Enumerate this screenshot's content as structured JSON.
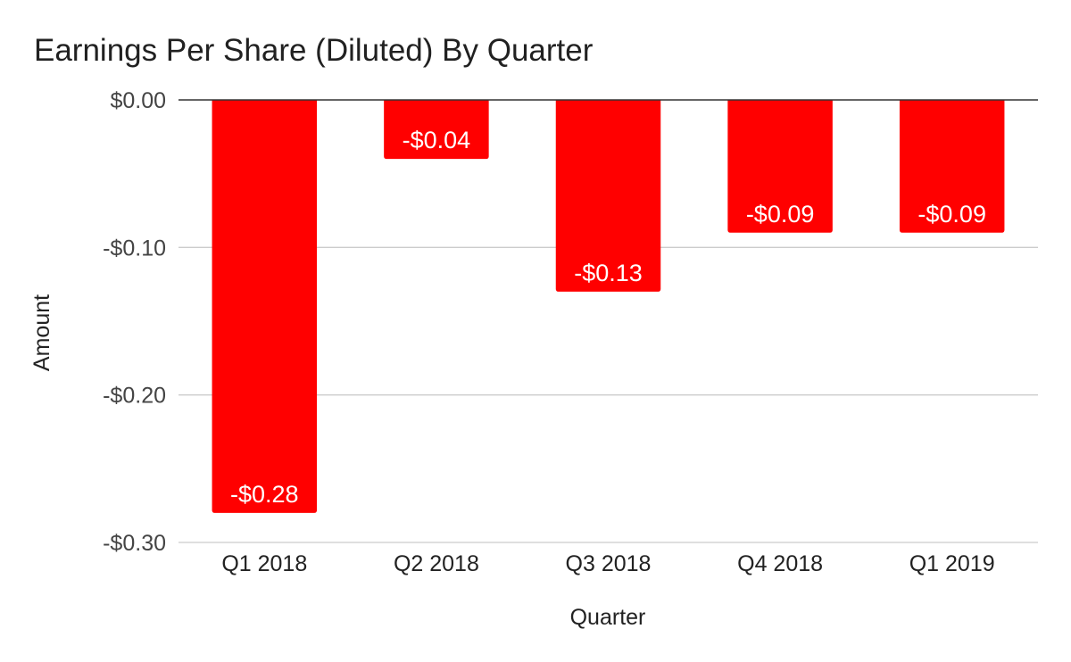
{
  "chart_data": {
    "type": "bar",
    "title": "Earnings Per Share (Diluted) By Quarter",
    "xlabel": "Quarter",
    "ylabel": "Amount",
    "categories": [
      "Q1 2018",
      "Q2 2018",
      "Q3 2018",
      "Q4 2018",
      "Q1 2019"
    ],
    "values": [
      -0.28,
      -0.04,
      -0.13,
      -0.09,
      -0.09
    ],
    "data_labels": [
      "-$0.28",
      "-$0.04",
      "-$0.13",
      "-$0.09",
      "-$0.09"
    ],
    "ylim": [
      -0.3,
      0
    ],
    "yticks": [
      0,
      -0.1,
      -0.2,
      -0.3
    ],
    "ytick_labels": [
      "$0.00",
      "-$0.10",
      "-$0.20",
      "-$0.30"
    ],
    "grid": true,
    "legend": "none",
    "bar_color": "#ff0000",
    "label_color": "#ffffff"
  }
}
